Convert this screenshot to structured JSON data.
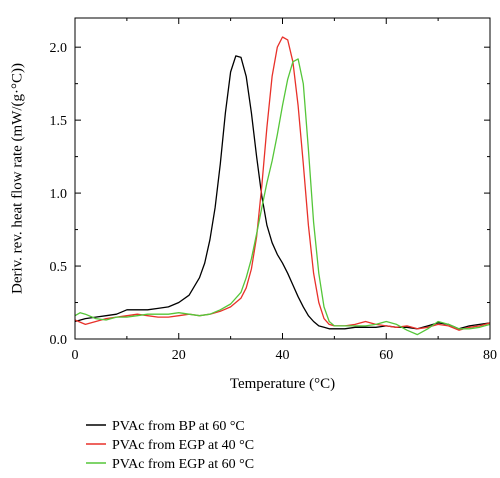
{
  "chart_data": {
    "type": "line",
    "xlabel": "Temperature (°C)",
    "ylabel": "Deriv. rev. heat flow rate (mW/(g·°C))",
    "xlim": [
      0,
      80
    ],
    "ylim": [
      0,
      2.2
    ],
    "xticks": [
      0,
      20,
      40,
      60,
      80
    ],
    "yticks": [
      0.0,
      0.5,
      1.0,
      1.5,
      2.0
    ],
    "xtick_labels": [
      "0",
      "20",
      "40",
      "60",
      "80"
    ],
    "ytick_labels": [
      "0.0",
      "0.5",
      "1.0",
      "1.5",
      "2.0"
    ],
    "grid": false,
    "legend_position": "below-left",
    "series": [
      {
        "name": "PVAc from BP at 60 °C",
        "color": "#000000",
        "x": [
          0,
          2,
          4,
          6,
          8,
          10,
          12,
          14,
          16,
          18,
          20,
          22,
          24,
          25,
          26,
          27,
          28,
          29,
          30,
          31,
          32,
          33,
          34,
          35,
          36,
          37,
          38,
          39,
          40,
          41,
          42,
          43,
          44,
          45,
          46,
          47,
          48,
          49,
          50,
          52,
          54,
          56,
          58,
          60,
          62,
          64,
          66,
          68,
          70,
          72,
          74,
          76,
          78,
          80
        ],
        "y": [
          0.12,
          0.14,
          0.15,
          0.16,
          0.17,
          0.2,
          0.2,
          0.2,
          0.21,
          0.22,
          0.25,
          0.3,
          0.42,
          0.52,
          0.68,
          0.9,
          1.2,
          1.55,
          1.83,
          1.94,
          1.93,
          1.8,
          1.55,
          1.25,
          0.98,
          0.78,
          0.66,
          0.58,
          0.52,
          0.45,
          0.37,
          0.29,
          0.22,
          0.16,
          0.12,
          0.09,
          0.08,
          0.07,
          0.07,
          0.07,
          0.08,
          0.08,
          0.08,
          0.09,
          0.08,
          0.08,
          0.07,
          0.09,
          0.11,
          0.1,
          0.07,
          0.09,
          0.1,
          0.11
        ]
      },
      {
        "name": "PVAc from EGP at 40 °C",
        "color": "#e8312a",
        "x": [
          0,
          2,
          4,
          6,
          8,
          10,
          12,
          14,
          16,
          18,
          20,
          22,
          24,
          26,
          28,
          30,
          32,
          33,
          34,
          35,
          36,
          37,
          38,
          39,
          40,
          41,
          42,
          43,
          44,
          45,
          46,
          47,
          48,
          49,
          50,
          52,
          54,
          56,
          58,
          60,
          62,
          64,
          66,
          68,
          70,
          72,
          74,
          76,
          78,
          80
        ],
        "y": [
          0.13,
          0.1,
          0.12,
          0.14,
          0.15,
          0.16,
          0.17,
          0.16,
          0.15,
          0.15,
          0.16,
          0.17,
          0.16,
          0.17,
          0.19,
          0.22,
          0.28,
          0.35,
          0.48,
          0.7,
          1.05,
          1.45,
          1.8,
          2.0,
          2.07,
          2.05,
          1.9,
          1.6,
          1.2,
          0.78,
          0.45,
          0.25,
          0.14,
          0.1,
          0.09,
          0.09,
          0.1,
          0.12,
          0.1,
          0.09,
          0.08,
          0.09,
          0.07,
          0.08,
          0.1,
          0.09,
          0.06,
          0.08,
          0.09,
          0.11
        ]
      },
      {
        "name": "PVAc from EGP at 60 °C",
        "color": "#55c639",
        "x": [
          0,
          1,
          2,
          4,
          6,
          8,
          10,
          12,
          14,
          16,
          18,
          20,
          22,
          24,
          26,
          28,
          30,
          32,
          33,
          34,
          35,
          36,
          37,
          38,
          39,
          40,
          41,
          42,
          43,
          44,
          45,
          46,
          47,
          48,
          49,
          50,
          52,
          54,
          56,
          58,
          60,
          62,
          64,
          66,
          68,
          70,
          72,
          74,
          76,
          78,
          80
        ],
        "y": [
          0.16,
          0.18,
          0.17,
          0.14,
          0.13,
          0.15,
          0.15,
          0.16,
          0.17,
          0.17,
          0.17,
          0.18,
          0.17,
          0.16,
          0.17,
          0.2,
          0.24,
          0.32,
          0.42,
          0.55,
          0.72,
          0.9,
          1.07,
          1.22,
          1.4,
          1.6,
          1.78,
          1.9,
          1.92,
          1.75,
          1.3,
          0.8,
          0.45,
          0.22,
          0.12,
          0.09,
          0.09,
          0.09,
          0.09,
          0.1,
          0.12,
          0.1,
          0.06,
          0.03,
          0.07,
          0.12,
          0.1,
          0.07,
          0.07,
          0.08,
          0.1
        ]
      }
    ]
  }
}
